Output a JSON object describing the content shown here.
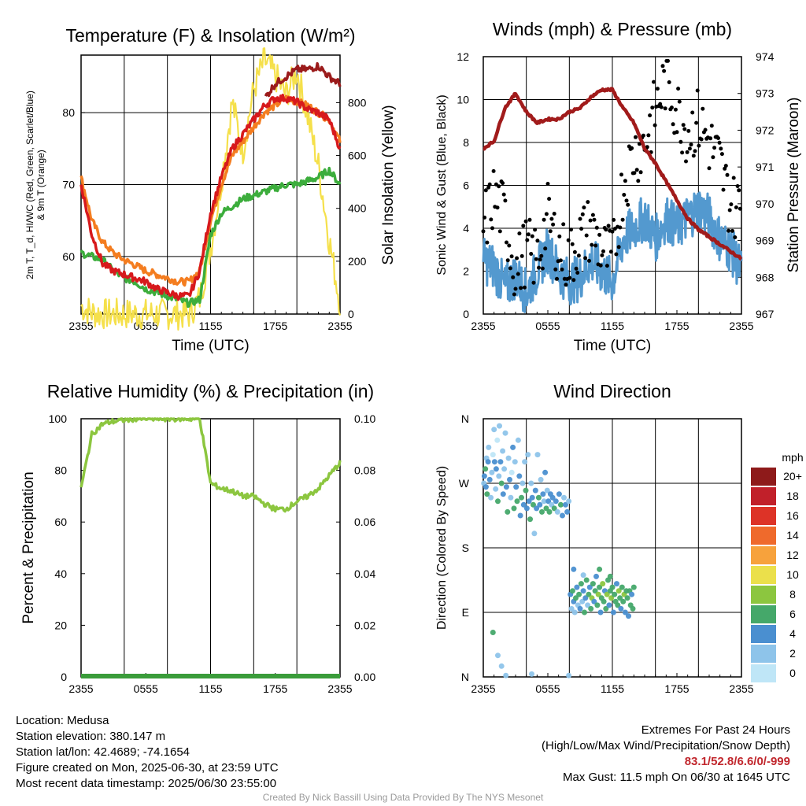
{
  "colors": {
    "temp": "#d7191c",
    "temp_9m": "#f47d20",
    "dewpoint": "#3cad3c",
    "heat_index": "#9b1b1b",
    "solar": "#f5e04b",
    "wind": "#5399cf",
    "gust": "#000000",
    "pressure": "#a11b1b",
    "rh": "#8cc63f",
    "precip": "#3a9c3a"
  },
  "chart_data": [
    {
      "id": "temp",
      "type": "line",
      "title": "Temperature (F) & Insolation (W/m²)",
      "xlabel": "Time (UTC)",
      "ylabel_left": "2m T, Td, HI/WC (Red, Green, Scarlet/Blue) & 9m T (Orange)",
      "ylabel_left_lines": [
        "2m T, T_d, HI/WC (Red, Green, Scarlet/Blue)",
        "& 9m T (Orange)"
      ],
      "ylabel_right": "Solar Insolation (Yellow)",
      "x_ticks": [
        "2355",
        "0555",
        "1155",
        "1755",
        "2355"
      ],
      "x": [
        0,
        1,
        2,
        3,
        4,
        5,
        6,
        7,
        8,
        9,
        10,
        11,
        12,
        13,
        14,
        15,
        16,
        17,
        18,
        19,
        20,
        21,
        22,
        23,
        24
      ],
      "ylim": [
        52,
        88
      ],
      "y_ticks": [
        60,
        70,
        80
      ],
      "y2lim": [
        0,
        980
      ],
      "y2_ticks": [
        0,
        200,
        400,
        600,
        800
      ],
      "grid": true,
      "series": [
        {
          "name": "9m T",
          "axis": "left",
          "values": [
            71,
            65,
            62,
            60.5,
            59.5,
            58.8,
            58,
            57.5,
            57,
            56.5,
            56.5,
            58,
            65,
            70,
            74,
            76,
            78,
            80,
            81,
            82,
            81.5,
            81,
            80,
            79,
            76
          ]
        },
        {
          "name": "2m T",
          "axis": "left",
          "values": [
            70,
            63,
            59,
            58,
            57.5,
            57,
            56.5,
            55.5,
            55,
            54.5,
            54.5,
            58,
            66,
            71,
            75,
            77,
            79,
            81,
            82,
            82,
            81.5,
            80.5,
            80,
            79,
            75
          ]
        },
        {
          "name": "Td",
          "axis": "left",
          "values": [
            60.5,
            60,
            59.5,
            58,
            57,
            56.5,
            55.5,
            55,
            54.5,
            54,
            53.5,
            54,
            63,
            66,
            67,
            68,
            68.5,
            69,
            69.5,
            70,
            70,
            70.5,
            71,
            72,
            70
          ]
        },
        {
          "name": "HI/WC",
          "axis": "left",
          "values": [
            null,
            null,
            null,
            null,
            null,
            null,
            null,
            null,
            null,
            null,
            null,
            null,
            null,
            null,
            null,
            null,
            null,
            82,
            84,
            85,
            86,
            86,
            86.5,
            85,
            84
          ]
        },
        {
          "name": "Solar Insolation",
          "axis": "right",
          "values": [
            30,
            5,
            0,
            0,
            0,
            0,
            0,
            0,
            0,
            0,
            0,
            60,
            250,
            500,
            800,
            620,
            850,
            960,
            900,
            830,
            920,
            750,
            560,
            280,
            40
          ]
        }
      ]
    },
    {
      "id": "wind",
      "type": "line",
      "title": "Winds (mph) & Pressure (mb)",
      "xlabel": "Time (UTC)",
      "ylabel_left": "Sonic Wind & Gust (Blue, Black)",
      "ylabel_right": "Station Pressure (Maroon)",
      "x_ticks": [
        "2355",
        "0555",
        "1155",
        "1755",
        "2355"
      ],
      "x": [
        0,
        1,
        2,
        3,
        4,
        5,
        6,
        7,
        8,
        9,
        10,
        11,
        12,
        13,
        14,
        15,
        16,
        17,
        18,
        19,
        20,
        21,
        22,
        23,
        24
      ],
      "ylim": [
        0,
        12
      ],
      "y_ticks": [
        0,
        2,
        4,
        6,
        8,
        10,
        12
      ],
      "y2lim": [
        967,
        974
      ],
      "y2_ticks": [
        967,
        968,
        969,
        970,
        971,
        972,
        973,
        974
      ],
      "grid": true,
      "series": [
        {
          "name": "Sonic Wind",
          "axis": "left",
          "values": [
            2.5,
            2.2,
            1.2,
            1.8,
            1.0,
            2.0,
            3.0,
            2.0,
            1.5,
            1.7,
            2.5,
            2.0,
            1.5,
            3.5,
            4.0,
            4.5,
            3.5,
            4.5,
            4.0,
            4.5,
            5.0,
            4.5,
            3.5,
            3.0,
            2.0
          ]
        },
        {
          "name": "Gust",
          "axis": "left",
          "values": [
            4.0,
            5.5,
            4.5,
            2.0,
            3.0,
            2.5,
            4.5,
            3.0,
            2.5,
            3.5,
            4.0,
            3.0,
            2.5,
            6.0,
            7.5,
            8.0,
            9.5,
            11.0,
            9.5,
            8.5,
            9.0,
            8.0,
            7.0,
            5.0,
            5.0
          ]
        },
        {
          "name": "Station Pressure",
          "axis": "right",
          "values": [
            971.5,
            971.7,
            972.6,
            973.0,
            972.5,
            972.2,
            972.3,
            972.3,
            972.5,
            972.6,
            972.9,
            973.1,
            973.1,
            972.6,
            972.2,
            971.5,
            971.1,
            970.6,
            970.1,
            969.6,
            969.3,
            969.1,
            968.9,
            968.7,
            968.5
          ]
        }
      ]
    },
    {
      "id": "rh",
      "type": "line",
      "title": "Relative Humidity (%) & Precipitation (in)",
      "ylabel_left": "Percent & Precipitation",
      "x_ticks": [
        "2355",
        "0555",
        "1155",
        "1755",
        "2355"
      ],
      "x": [
        0,
        1,
        2,
        3,
        4,
        5,
        6,
        7,
        8,
        9,
        10,
        11,
        12,
        13,
        14,
        15,
        16,
        17,
        18,
        19,
        20,
        21,
        22,
        23,
        24
      ],
      "ylim": [
        0,
        100
      ],
      "y_ticks": [
        0,
        20,
        40,
        60,
        80,
        100
      ],
      "y2lim": [
        0,
        0.1
      ],
      "y2_ticks": [
        "0.00",
        "0.02",
        "0.04",
        "0.06",
        "0.08",
        "0.10"
      ],
      "grid": true,
      "series": [
        {
          "name": "RH",
          "axis": "left",
          "values": [
            73,
            94,
            98,
            99,
            99.5,
            100,
            100,
            100,
            100,
            100,
            100,
            100,
            75,
            73,
            72,
            70,
            70,
            67,
            65,
            65,
            68,
            70,
            73,
            78,
            83
          ]
        },
        {
          "name": "Precipitation",
          "axis": "right",
          "values": [
            0,
            0,
            0,
            0,
            0,
            0,
            0,
            0,
            0,
            0,
            0,
            0,
            0,
            0,
            0,
            0,
            0,
            0,
            0,
            0,
            0,
            0,
            0,
            0,
            0
          ]
        }
      ]
    },
    {
      "id": "dir",
      "type": "scatter",
      "title": "Wind Direction",
      "ylabel_left": "Direction (Colored By Speed)",
      "x_ticks": [
        "2355",
        "0555",
        "1155",
        "1755",
        "2355"
      ],
      "y_ticks": [
        "N",
        "E",
        "S",
        "W",
        "N"
      ],
      "ylim": [
        0,
        360
      ],
      "grid": true,
      "colorbar": {
        "unit": "mph",
        "labels": [
          "0",
          "2",
          "4",
          "6",
          "8",
          "10",
          "12",
          "14",
          "16",
          "18",
          "20+"
        ],
        "colors": [
          "#bfe6f7",
          "#8ec4ea",
          "#4a8fd0",
          "#45a86a",
          "#8cc63f",
          "#ebe04b",
          "#f7a23c",
          "#ef6a2c",
          "#dd3327",
          "#c1202a",
          "#8e1a1a"
        ]
      },
      "points": [
        [
          0.05,
          270,
          1
        ],
        [
          0.1,
          280,
          2
        ],
        [
          0.2,
          290,
          3
        ],
        [
          0.25,
          265,
          2
        ],
        [
          0.3,
          305,
          1
        ],
        [
          0.35,
          255,
          3
        ],
        [
          0.45,
          300,
          2
        ],
        [
          0.5,
          320,
          1
        ],
        [
          0.6,
          275,
          2
        ],
        [
          0.7,
          250,
          1
        ],
        [
          0.8,
          285,
          1
        ],
        [
          0.9,
          310,
          0
        ],
        [
          1.0,
          345,
          1
        ],
        [
          1.05,
          300,
          2
        ],
        [
          1.15,
          262,
          1
        ],
        [
          1.2,
          290,
          2
        ],
        [
          1.3,
          330,
          0
        ],
        [
          1.35,
          245,
          3
        ],
        [
          1.45,
          280,
          1
        ],
        [
          1.5,
          350,
          1
        ],
        [
          1.6,
          300,
          2
        ],
        [
          1.7,
          270,
          3
        ],
        [
          1.8,
          315,
          1
        ],
        [
          1.85,
          255,
          2
        ],
        [
          1.95,
          290,
          1
        ],
        [
          2.05,
          340,
          1
        ],
        [
          2.15,
          265,
          2
        ],
        [
          2.25,
          230,
          3
        ],
        [
          2.35,
          305,
          1
        ],
        [
          2.45,
          275,
          2
        ],
        [
          2.55,
          250,
          1
        ],
        [
          2.65,
          285,
          0
        ],
        [
          2.75,
          320,
          2
        ],
        [
          2.85,
          235,
          3
        ],
        [
          2.95,
          300,
          1
        ],
        [
          3.05,
          265,
          2
        ],
        [
          3.15,
          245,
          3
        ],
        [
          3.25,
          330,
          1
        ],
        [
          3.35,
          280,
          2
        ],
        [
          3.45,
          225,
          2
        ],
        [
          3.55,
          250,
          3
        ],
        [
          3.65,
          270,
          1
        ],
        [
          3.75,
          240,
          2
        ],
        [
          3.85,
          300,
          1
        ],
        [
          3.95,
          260,
          3
        ],
        [
          4.05,
          235,
          2
        ],
        [
          4.15,
          310,
          1
        ],
        [
          4.25,
          245,
          2
        ],
        [
          4.35,
          220,
          3
        ],
        [
          4.45,
          270,
          1
        ],
        [
          4.55,
          250,
          2
        ],
        [
          4.65,
          240,
          3
        ],
        [
          4.75,
          200,
          1
        ],
        [
          4.85,
          260,
          2
        ],
        [
          4.95,
          235,
          2
        ],
        [
          5.05,
          310,
          1
        ],
        [
          5.15,
          250,
          3
        ],
        [
          5.25,
          240,
          2
        ],
        [
          5.35,
          275,
          1
        ],
        [
          5.45,
          230,
          3
        ],
        [
          5.55,
          255,
          2
        ],
        [
          5.65,
          245,
          1
        ],
        [
          5.75,
          285,
          2
        ],
        [
          5.85,
          235,
          3
        ],
        [
          5.95,
          260,
          1
        ],
        [
          6.05,
          245,
          2
        ],
        [
          6.15,
          230,
          3
        ],
        [
          6.25,
          255,
          2
        ],
        [
          6.35,
          240,
          1
        ],
        [
          6.45,
          250,
          2
        ],
        [
          6.6,
          235,
          3
        ],
        [
          6.75,
          245,
          2
        ],
        [
          6.9,
          230,
          1
        ],
        [
          7.05,
          255,
          2
        ],
        [
          7.2,
          240,
          3
        ],
        [
          7.35,
          225,
          2
        ],
        [
          7.5,
          250,
          1
        ],
        [
          7.65,
          240,
          2
        ],
        [
          7.8,
          230,
          2
        ],
        [
          7.95,
          245,
          1
        ],
        [
          0.9,
          62,
          3
        ],
        [
          1.35,
          30,
          1
        ],
        [
          1.7,
          15,
          1
        ],
        [
          2.1,
          2,
          1
        ],
        [
          4.5,
          4,
          1
        ],
        [
          7.95,
          2,
          1
        ],
        [
          8.1,
          115,
          2
        ],
        [
          8.2,
          95,
          1
        ],
        [
          8.3,
          120,
          3
        ],
        [
          8.4,
          105,
          2
        ],
        [
          8.5,
          90,
          1
        ],
        [
          8.6,
          110,
          3
        ],
        [
          8.7,
          125,
          2
        ],
        [
          8.8,
          100,
          1
        ],
        [
          8.9,
          115,
          3
        ],
        [
          9.0,
          95,
          2
        ],
        [
          9.1,
          130,
          3
        ],
        [
          9.2,
          105,
          1
        ],
        [
          9.3,
          120,
          2
        ],
        [
          9.4,
          90,
          3
        ],
        [
          9.5,
          110,
          2
        ],
        [
          9.6,
          135,
          3
        ],
        [
          9.7,
          100,
          1
        ],
        [
          9.8,
          115,
          3
        ],
        [
          9.9,
          125,
          2
        ],
        [
          10.0,
          95,
          3
        ],
        [
          10.1,
          110,
          4
        ],
        [
          10.2,
          130,
          3
        ],
        [
          10.3,
          105,
          2
        ],
        [
          10.4,
          120,
          3
        ],
        [
          10.5,
          140,
          2
        ],
        [
          10.6,
          100,
          3
        ],
        [
          10.7,
          115,
          4
        ],
        [
          10.8,
          125,
          3
        ],
        [
          10.9,
          90,
          2
        ],
        [
          11.0,
          110,
          3
        ],
        [
          11.1,
          130,
          4
        ],
        [
          11.2,
          105,
          3
        ],
        [
          11.3,
          120,
          2
        ],
        [
          11.4,
          95,
          3
        ],
        [
          11.5,
          115,
          4
        ],
        [
          11.6,
          135,
          3
        ],
        [
          11.7,
          100,
          2
        ],
        [
          11.8,
          120,
          3
        ],
        [
          11.9,
          110,
          4
        ],
        [
          12.0,
          125,
          3
        ],
        [
          12.1,
          90,
          2
        ],
        [
          12.2,
          115,
          3
        ],
        [
          12.3,
          105,
          3
        ],
        [
          12.4,
          130,
          2
        ],
        [
          12.5,
          100,
          3
        ],
        [
          12.6,
          120,
          4
        ],
        [
          12.7,
          110,
          3
        ],
        [
          12.8,
          95,
          2
        ],
        [
          12.9,
          125,
          3
        ],
        [
          13.0,
          105,
          3
        ],
        [
          13.1,
          115,
          4
        ],
        [
          13.2,
          90,
          2
        ],
        [
          13.3,
          120,
          3
        ],
        [
          13.4,
          110,
          3
        ],
        [
          13.5,
          85,
          2
        ],
        [
          13.6,
          120,
          3
        ],
        [
          13.7,
          100,
          3
        ],
        [
          13.8,
          115,
          2
        ],
        [
          13.9,
          95,
          3
        ],
        [
          14.0,
          125,
          3
        ],
        [
          8.4,
          150,
          2
        ],
        [
          9.3,
          142,
          1
        ],
        [
          10.8,
          150,
          3
        ],
        [
          11.8,
          140,
          3
        ]
      ]
    }
  ],
  "footer": {
    "location": "Location: Medusa",
    "elevation": "Station elevation: 380.147 m",
    "latlon": "Station lat/lon: 42.4689; -74.1654",
    "created": "Figure created on Mon, 2025-06-30, at 23:59 UTC",
    "recent": "Most recent data timestamp: 2025/06/30 23:55:00",
    "extremes_title": "Extremes For Past 24 Hours",
    "extremes_sub": "(High/Low/Max Wind/Precipitation/Snow Depth)",
    "extremes_values": "83.1/52.8/6.6/0/-999",
    "max_gust": "Max Gust: 11.5 mph On 06/30 at 1645 UTC",
    "credit": "Created By Nick Bassill Using Data Provided By The NYS Mesonet"
  }
}
